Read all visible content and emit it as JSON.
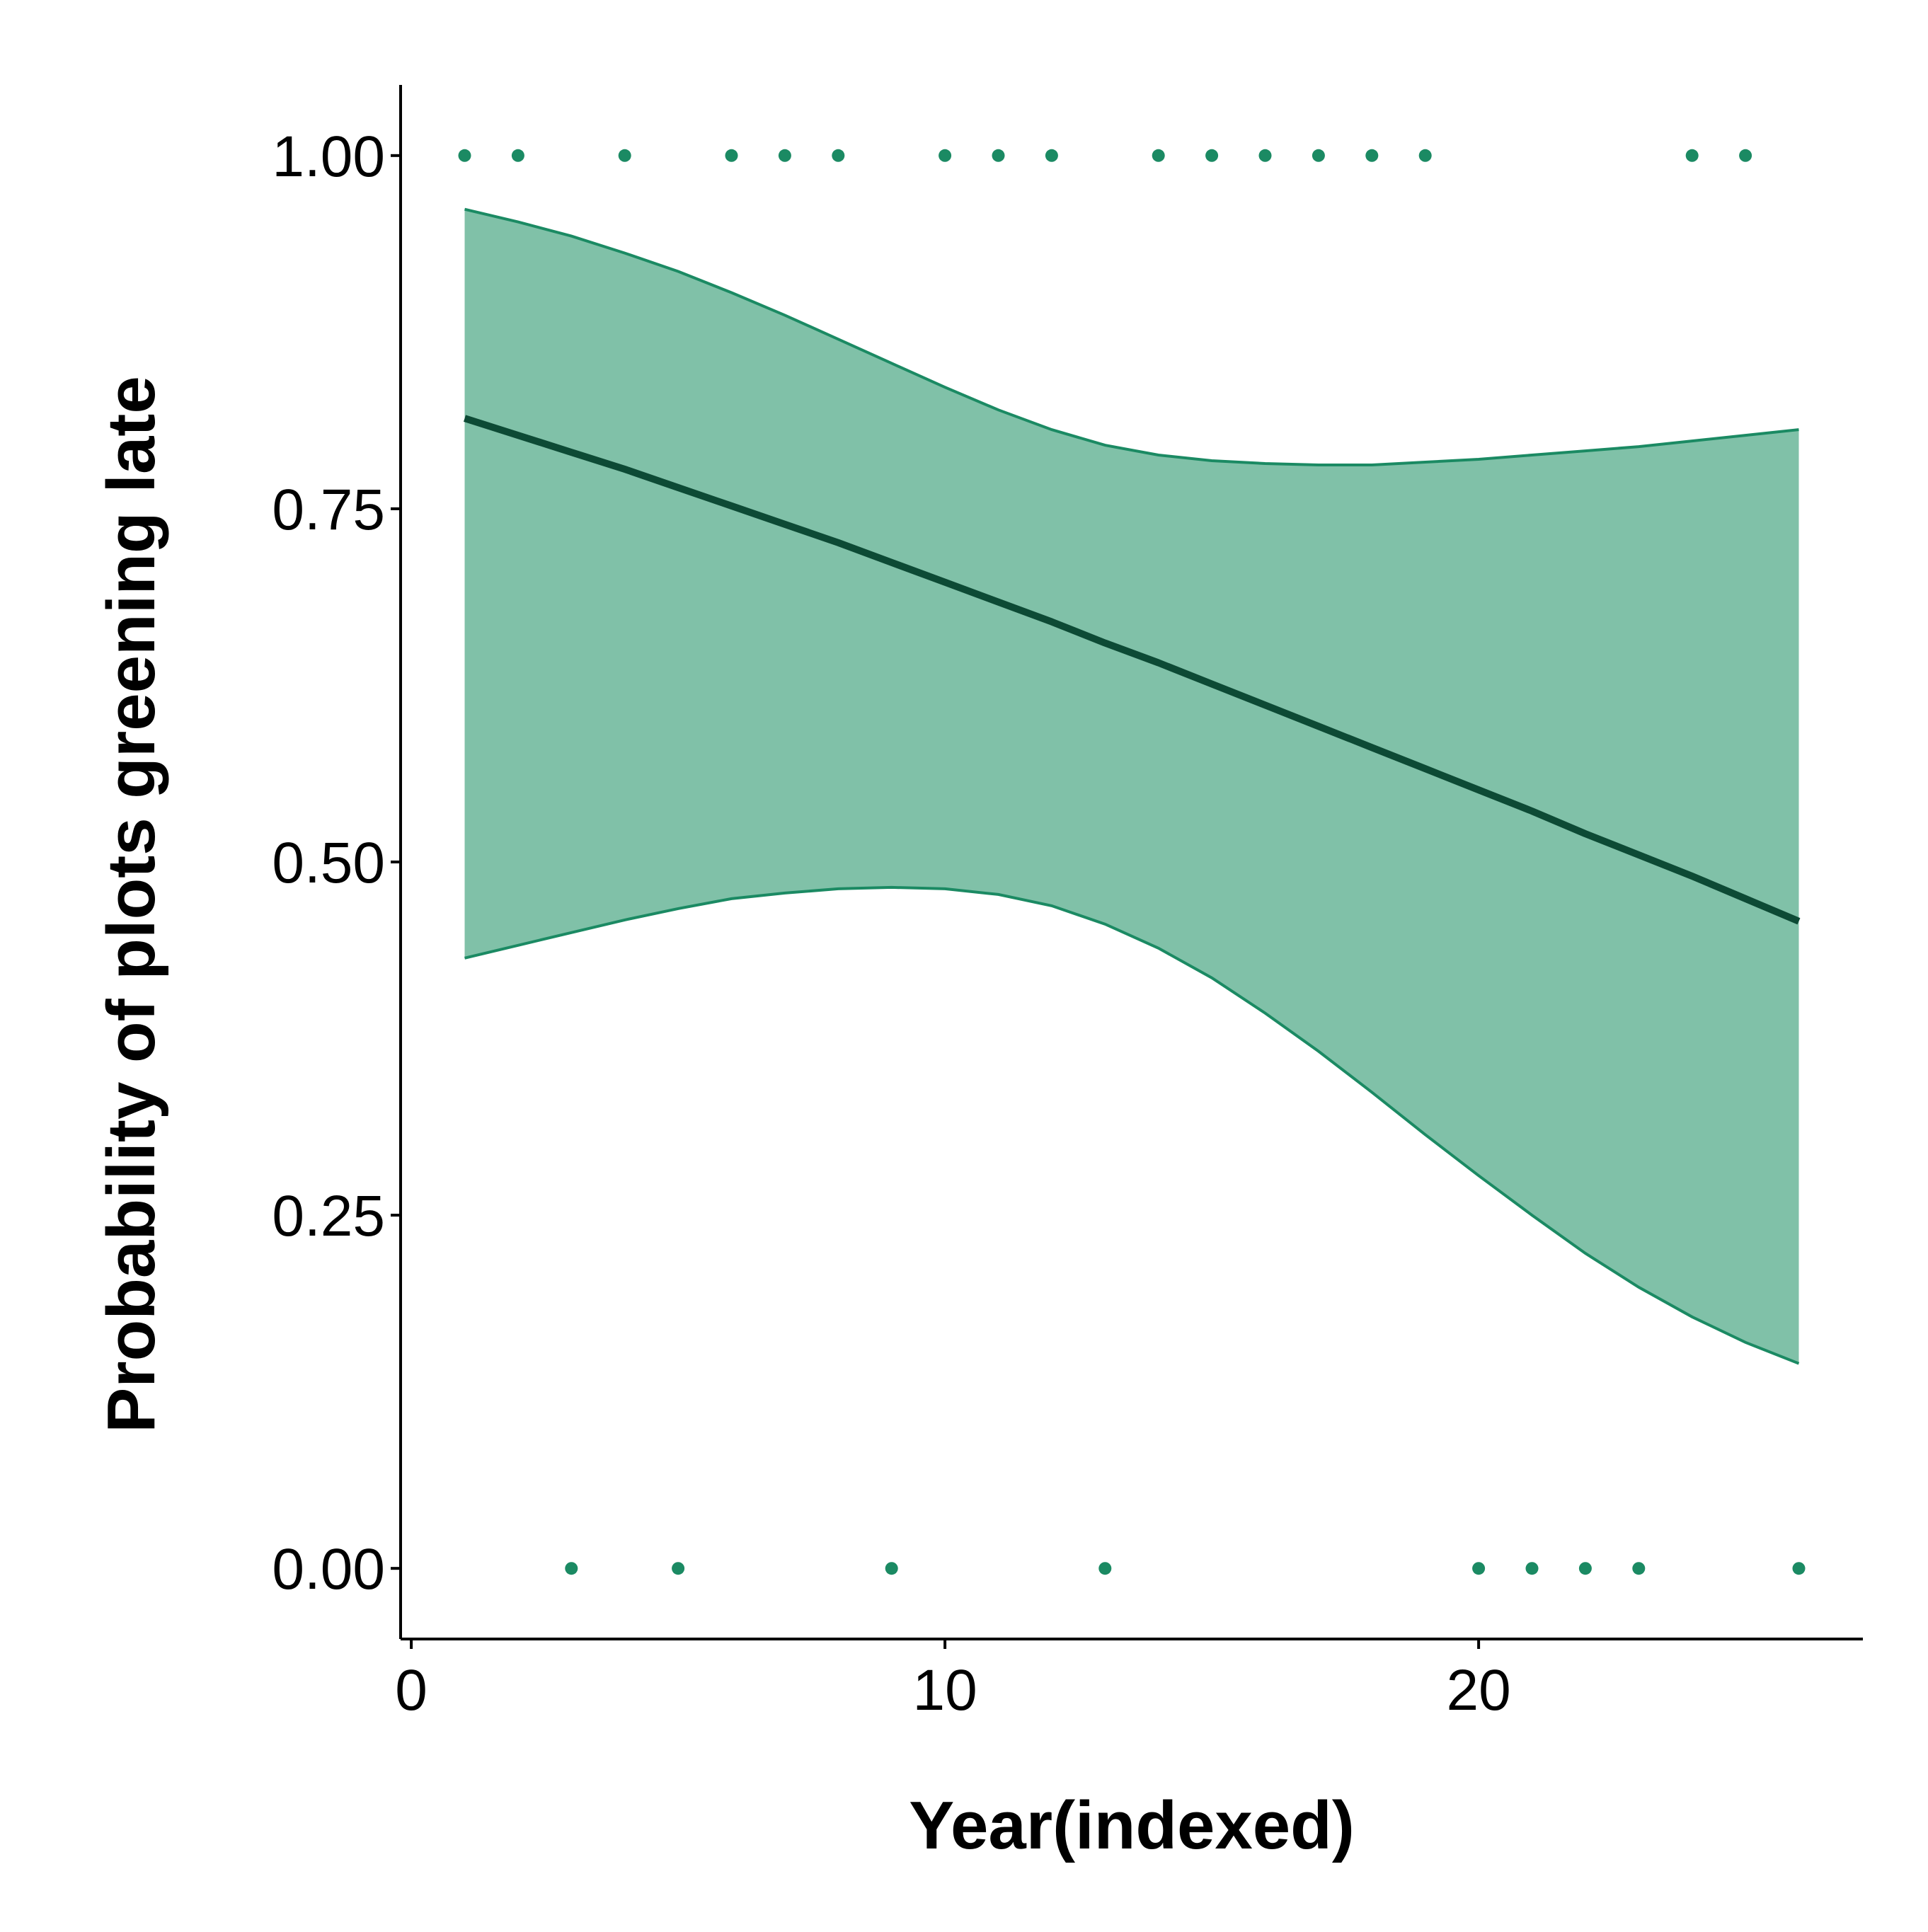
{
  "chart_data": {
    "type": "line",
    "title": "",
    "xlabel": "Year(indexed)",
    "ylabel": "Probability of plots greening late",
    "xlim": [
      -0.2,
      27.2
    ],
    "ylim": [
      -0.05,
      1.05
    ],
    "x_ticks": [
      0,
      10,
      20
    ],
    "y_ticks": [
      0,
      0.25,
      0.5,
      0.75,
      1.0
    ],
    "x_tick_labels": [
      "0",
      "10",
      "20"
    ],
    "y_tick_labels": [
      "0.00",
      "0.25",
      "0.50",
      "0.75",
      "1.00"
    ],
    "grid": false,
    "legend": "none",
    "colors": {
      "points": "#1b8a63",
      "ribbon_fill": "#80c1a8",
      "ribbon_edge": "#1b8a63",
      "fit_line": "#0d4a35",
      "axis": "#000000"
    },
    "observations": {
      "x": [
        1,
        2,
        4,
        6,
        7,
        8,
        10,
        11,
        12,
        14,
        15,
        16,
        17,
        18,
        19,
        24,
        25,
        3,
        5,
        9,
        13,
        20,
        21,
        22,
        23,
        26
      ],
      "y": [
        1,
        1,
        1,
        1,
        1,
        1,
        1,
        1,
        1,
        1,
        1,
        1,
        1,
        1,
        1,
        1,
        1,
        0,
        0,
        0,
        0,
        0,
        0,
        0,
        0,
        0
      ]
    },
    "fit": {
      "x": [
        1,
        2,
        3,
        4,
        5,
        6,
        7,
        8,
        9,
        10,
        11,
        12,
        13,
        14,
        15,
        16,
        17,
        18,
        19,
        20,
        21,
        22,
        23,
        24,
        25,
        26
      ],
      "y": [
        0.814,
        0.802,
        0.79,
        0.778,
        0.765,
        0.752,
        0.739,
        0.726,
        0.712,
        0.698,
        0.684,
        0.67,
        0.655,
        0.641,
        0.626,
        0.611,
        0.596,
        0.581,
        0.566,
        0.551,
        0.536,
        0.52,
        0.505,
        0.49,
        0.474,
        0.458
      ],
      "lower": [
        0.432,
        0.441,
        0.45,
        0.459,
        0.467,
        0.474,
        0.478,
        0.481,
        0.482,
        0.481,
        0.477,
        0.469,
        0.456,
        0.439,
        0.418,
        0.393,
        0.366,
        0.337,
        0.307,
        0.278,
        0.25,
        0.223,
        0.199,
        0.178,
        0.16,
        0.145
      ],
      "upper": [
        0.962,
        0.953,
        0.943,
        0.931,
        0.918,
        0.903,
        0.887,
        0.87,
        0.853,
        0.836,
        0.82,
        0.806,
        0.795,
        0.788,
        0.784,
        0.782,
        0.781,
        0.781,
        0.783,
        0.785,
        0.788,
        0.791,
        0.794,
        0.798,
        0.802,
        0.806
      ]
    }
  }
}
